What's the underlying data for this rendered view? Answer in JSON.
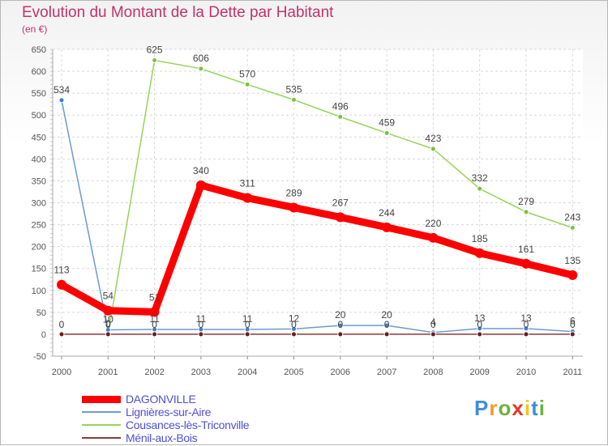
{
  "chart_data": {
    "type": "line",
    "title": "Evolution du Montant de la Dette par Habitant",
    "subtitle": "(en €)",
    "categories": [
      "2000",
      "2001",
      "2002",
      "2003",
      "2004",
      "2005",
      "2006",
      "2007",
      "2008",
      "2009",
      "2010",
      "2011"
    ],
    "ylim": [
      -50,
      650
    ],
    "yticks": [
      -50,
      0,
      50,
      100,
      150,
      200,
      250,
      300,
      350,
      400,
      450,
      500,
      550,
      600,
      650
    ],
    "legend_position": "bottom-left",
    "series": [
      {
        "name": "DAGONVILLE",
        "color": "#ff0000",
        "values": [
          113,
          54,
          51,
          340,
          311,
          289,
          267,
          244,
          220,
          185,
          161,
          135
        ],
        "labels": [
          "113",
          "54",
          "51",
          "340",
          "311",
          "289",
          "267",
          "244",
          "220",
          "185",
          "161",
          "135"
        ]
      },
      {
        "name": "Lignières-sur-Aire",
        "color": "#6b9bd1",
        "values": [
          534,
          10,
          11,
          11,
          11,
          12,
          20,
          20,
          4,
          13,
          13,
          6
        ],
        "labels": [
          "534",
          "10",
          "11",
          "11",
          "11",
          "12",
          "20",
          "20",
          "4",
          "13",
          "13",
          "6"
        ]
      },
      {
        "name": "Cousances-lès-Triconville",
        "color": "#97d35a",
        "values": [
          null,
          0,
          625,
          606,
          570,
          535,
          496,
          459,
          423,
          332,
          279,
          243
        ],
        "labels": [
          "",
          "0",
          "625",
          "606",
          "570",
          "535",
          "496",
          "459",
          "423",
          "332",
          "279",
          "243"
        ]
      },
      {
        "name": "Ménil-aux-Bois",
        "color": "#8b3a3a",
        "values": [
          0,
          0,
          0,
          0,
          0,
          0,
          0,
          0,
          0,
          0,
          0,
          0
        ],
        "labels": [
          "0",
          "0",
          "0",
          "0",
          "0",
          "0",
          "0",
          "0",
          "0",
          "0",
          "0",
          "0"
        ]
      }
    ]
  },
  "logo": {
    "letters": [
      "P",
      "r",
      "o",
      "x",
      "i",
      "t",
      "i"
    ],
    "colors": [
      "#3e8fd8",
      "#f29a2e",
      "#6cb33f",
      "#e5372b",
      "#f5c518",
      "#3e8fd8",
      "#6cb33f"
    ]
  }
}
